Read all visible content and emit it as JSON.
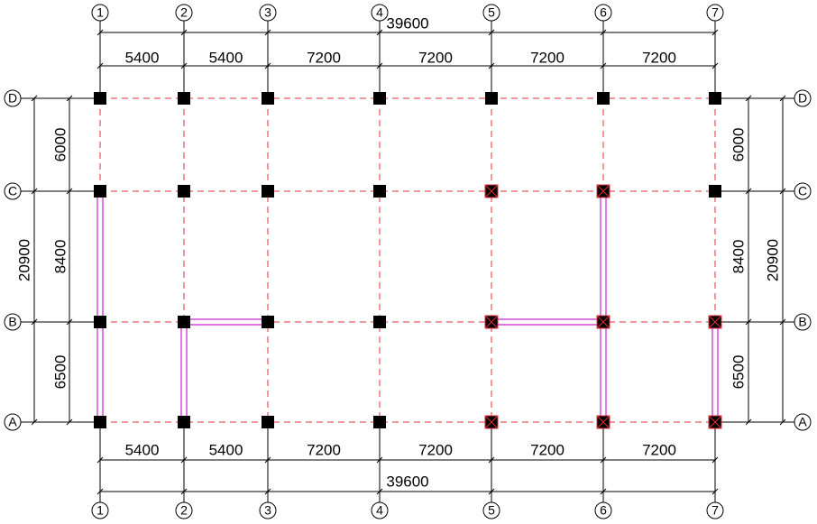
{
  "grid": {
    "columns": [
      "1",
      "2",
      "3",
      "4",
      "5",
      "6",
      "7"
    ],
    "rows": [
      "D",
      "C",
      "B",
      "A"
    ],
    "column_spacings": [
      "5400",
      "5400",
      "7200",
      "7200",
      "7200",
      "7200"
    ],
    "column_total": "39600",
    "row_spacings": [
      "6000",
      "8400",
      "6500"
    ],
    "row_total": "20900"
  }
}
